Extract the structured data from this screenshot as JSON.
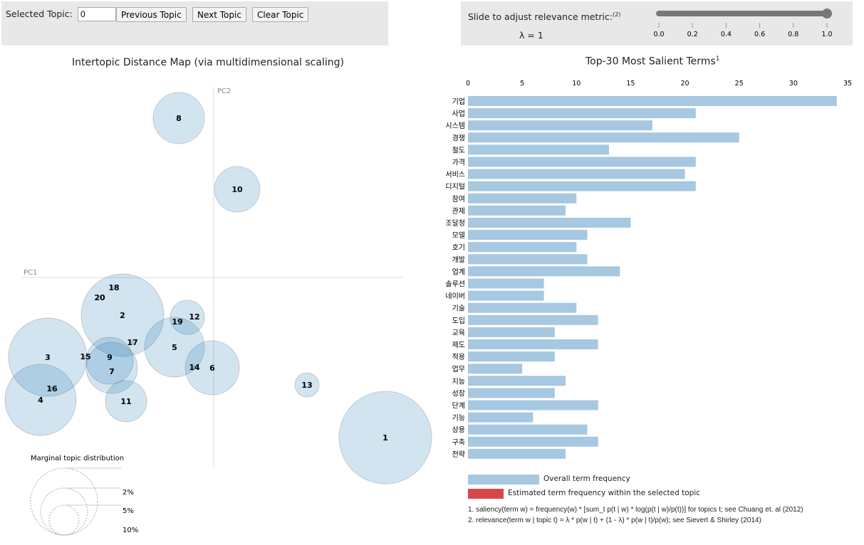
{
  "controls": {
    "selected_label": "Selected Topic:",
    "selected_value": "0",
    "prev": "Previous Topic",
    "next": "Next Topic",
    "clear": "Clear Topic"
  },
  "slider": {
    "label": "Slide to adjust relevance metric:",
    "label_sup": "(2)",
    "lambda_text": "λ = 1",
    "value": 1,
    "ticks": [
      "0.0",
      "0.2",
      "0.4",
      "0.6",
      "0.8",
      "1.0"
    ]
  },
  "map": {
    "title": "Intertopic Distance Map (via multidimensional scaling)",
    "pc1": "PC1",
    "pc2": "PC2",
    "topics": [
      "1",
      "2",
      "3",
      "4",
      "5",
      "6",
      "7",
      "8",
      "9",
      "10",
      "11",
      "12",
      "13",
      "14",
      "15",
      "16",
      "17",
      "18",
      "19",
      "20"
    ],
    "marginal_title": "Marginal topic distribution",
    "marginal_levels": [
      "2%",
      "5%",
      "10%"
    ]
  },
  "chart_data": {
    "type": "bar",
    "title": "Top-30 Most Salient Terms",
    "title_sup": "1",
    "xlim": [
      0,
      35
    ],
    "xticks": [
      "0",
      "5",
      "10",
      "15",
      "20",
      "25",
      "30",
      "35"
    ],
    "categories": [
      "기업",
      "사업",
      "시스템",
      "경쟁",
      "철도",
      "가격",
      "서비스",
      "디지털",
      "참여",
      "관제",
      "조달청",
      "모델",
      "호기",
      "개발",
      "업계",
      "솔루션",
      "네이버",
      "기술",
      "도입",
      "교육",
      "제도",
      "적용",
      "업무",
      "지능",
      "성장",
      "단계",
      "기능",
      "상용",
      "구축",
      "전략"
    ],
    "values": [
      34,
      21,
      17,
      25,
      13,
      21,
      20,
      21,
      10,
      9,
      15,
      11,
      10,
      11,
      14,
      7,
      7,
      10,
      12,
      8,
      12,
      8,
      5,
      9,
      8,
      12,
      6,
      11,
      12,
      9
    ],
    "bar_color": "#a6c8e0"
  },
  "legend": {
    "overall": "Overall term frequency",
    "overall_color": "#a6c8e0",
    "estimated": "Estimated term frequency within the selected topic",
    "estimated_color": "#d9474b"
  },
  "footnotes": [
    "1. saliency(term w) = frequency(w) * [sum_t p(t | w) * log(p(t | w)/p(t))] for topics t; see Chuang et. al (2012)",
    "2. relevance(term w | topic t) = λ * p(w | t) + (1 - λ) * p(w | t)/p(w); see Sievert & Shirley (2014)"
  ]
}
